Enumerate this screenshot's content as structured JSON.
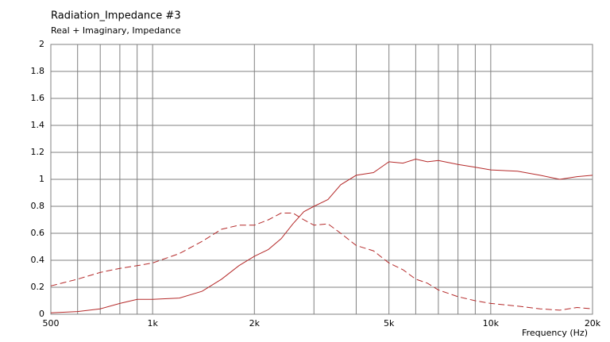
{
  "chart_data": {
    "type": "line",
    "title": "Radiation_Impedance #3",
    "subtitle": "Real + Imaginary, Impedance",
    "x_label": "Frequency  (Hz)",
    "x_scale": "log",
    "grid": true,
    "x": [
      500,
      600,
      700,
      800,
      900,
      1000,
      1200,
      1400,
      1600,
      1800,
      2000,
      2200,
      2400,
      2600,
      2800,
      3000,
      3300,
      3600,
      4000,
      4500,
      5000,
      5500,
      6000,
      6500,
      7000,
      8000,
      9000,
      10000,
      12000,
      14000,
      16000,
      18000,
      20000
    ],
    "series": [
      {
        "color": "#b52a2a",
        "dash": false,
        "values": [
          0.01,
          0.02,
          0.04,
          0.08,
          0.11,
          0.11,
          0.12,
          0.17,
          0.26,
          0.36,
          0.43,
          0.48,
          0.56,
          0.67,
          0.76,
          0.8,
          0.85,
          0.96,
          1.03,
          1.05,
          1.13,
          1.12,
          1.15,
          1.13,
          1.14,
          1.11,
          1.09,
          1.07,
          1.06,
          1.03,
          1.0,
          1.02,
          1.03
        ]
      },
      {
        "color": "#b52a2a",
        "dash": true,
        "values": [
          0.21,
          0.26,
          0.31,
          0.34,
          0.36,
          0.38,
          0.45,
          0.54,
          0.63,
          0.66,
          0.66,
          0.7,
          0.75,
          0.75,
          0.7,
          0.66,
          0.67,
          0.6,
          0.51,
          0.47,
          0.38,
          0.33,
          0.26,
          0.23,
          0.18,
          0.13,
          0.1,
          0.08,
          0.06,
          0.04,
          0.03,
          0.05,
          0.04
        ]
      }
    ],
    "xlim": [
      500,
      20000
    ],
    "xticks": [
      500,
      {
        "value": 1000,
        "label": "1k"
      },
      {
        "value": 2000,
        "label": "2k"
      },
      {
        "value": 5000,
        "label": "5k"
      },
      {
        "value": 10000,
        "label": "10k"
      },
      {
        "value": 20000,
        "label": "20k"
      }
    ],
    "x_minor_ticks": [
      600,
      700,
      800,
      900,
      3000,
      4000,
      6000,
      7000,
      8000,
      9000
    ],
    "ylim": [
      0,
      2
    ],
    "yticks": [
      0,
      0.2,
      0.4,
      0.6,
      0.8,
      1,
      1.2,
      1.4,
      1.6,
      1.8,
      2
    ]
  }
}
